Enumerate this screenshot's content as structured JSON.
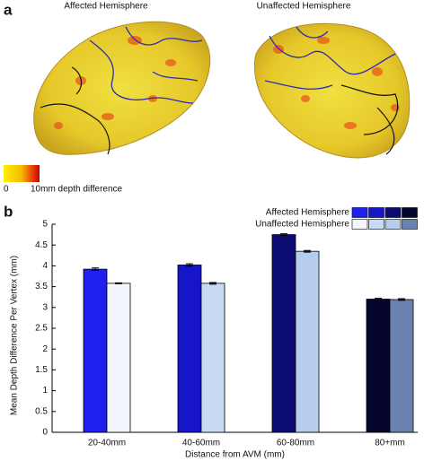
{
  "panel_a": {
    "label": "a",
    "left_title": "Affected Hemisphere",
    "right_title": "Unaffected Hemisphere",
    "colorbar": {
      "min_label": "0",
      "max_label": "10mm depth difference"
    }
  },
  "panel_b_label": "b",
  "chart_data": {
    "type": "bar",
    "xlabel": "Distance from AVM (mm)",
    "ylabel": "Mean Depth Difference Per Vertex (mm)",
    "categories": [
      "20-40mm",
      "40-60mm",
      "60-80mm",
      "80+mm"
    ],
    "series": [
      {
        "name": "Affected Hemisphere",
        "colors": [
          "#1f1ff0",
          "#1616c8",
          "#0b0b72",
          "#04042c"
        ],
        "values": [
          3.92,
          4.02,
          4.75,
          3.2
        ],
        "errors": [
          0.03,
          0.03,
          0.02,
          0.02
        ]
      },
      {
        "name": "Unaffected Hemisphere",
        "colors": [
          "#f3f5fd",
          "#c9daf5",
          "#b6cdee",
          "#6b82b0"
        ],
        "values": [
          3.58,
          3.58,
          4.35,
          3.19
        ],
        "errors": [
          0.01,
          0.02,
          0.02,
          0.02
        ]
      }
    ],
    "ylim": [
      0,
      5
    ],
    "yticks": [
      0,
      0.5,
      1,
      1.5,
      2,
      2.5,
      3,
      3.5,
      4,
      4.5,
      5
    ]
  }
}
